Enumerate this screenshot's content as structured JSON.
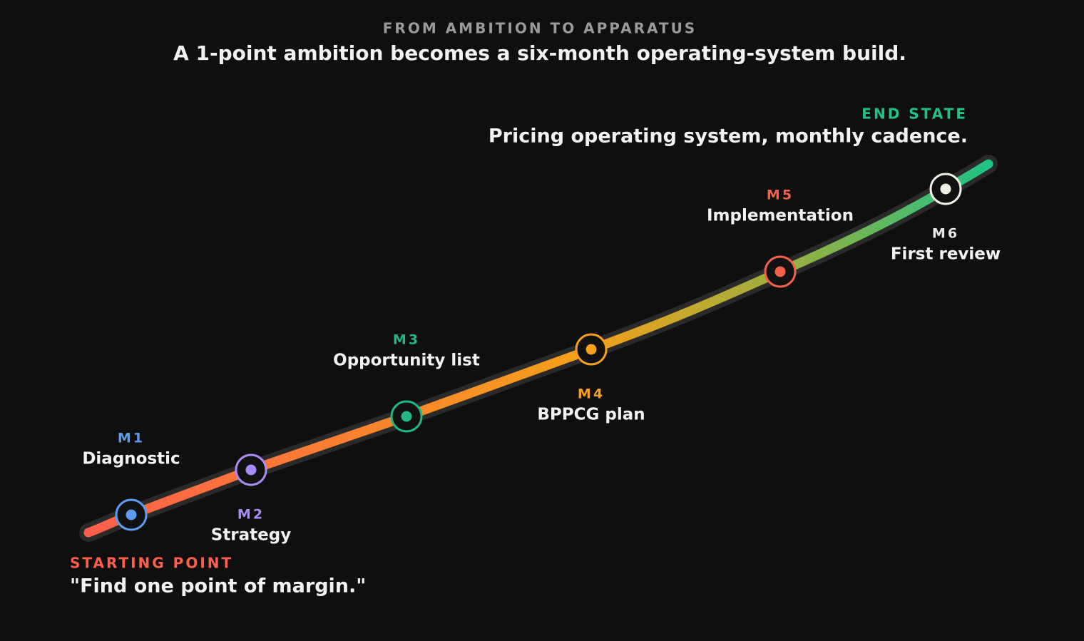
{
  "header": {
    "eyebrow": "FROM AMBITION TO APPARATUS",
    "title": "A 1-point ambition becomes a six-month operating-system build."
  },
  "start": {
    "label": "STARTING POINT",
    "text": "\"Find one point of margin.\""
  },
  "end": {
    "label": "END STATE",
    "text": "Pricing operating system, monthly cadence."
  },
  "milestones": [
    {
      "code": "M1",
      "label": "Diagnostic"
    },
    {
      "code": "M2",
      "label": "Strategy"
    },
    {
      "code": "M3",
      "label": "Opportunity list"
    },
    {
      "code": "M4",
      "label": "BPPCG plan"
    },
    {
      "code": "M5",
      "label": "Implementation"
    },
    {
      "code": "M6",
      "label": "First review"
    }
  ]
}
